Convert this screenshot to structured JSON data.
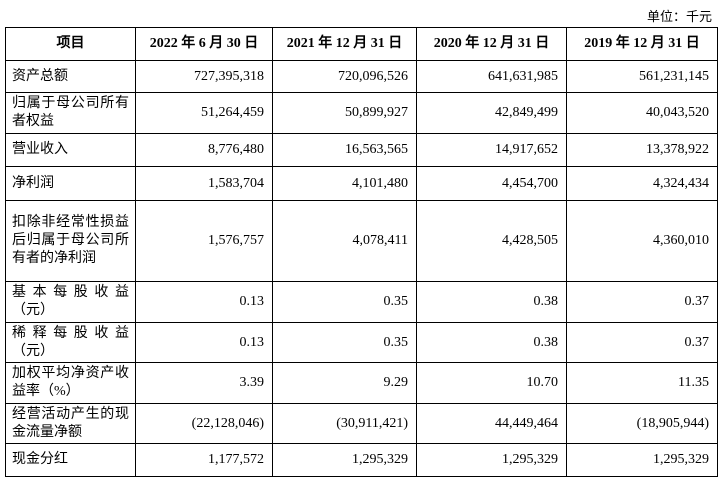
{
  "header": {
    "unit": "单位：千元"
  },
  "table": {
    "columns": [
      "项目",
      "2022 年 6 月 30 日",
      "2021 年 12 月 31 日",
      "2020 年 12 月 31 日",
      "2019 年 12 月 31 日"
    ],
    "rows": [
      [
        "资产总额",
        "727,395,318",
        "720,096,526",
        "641,631,985",
        "561,231,145"
      ],
      [
        "归属于母公司所有者权益",
        "51,264,459",
        "50,899,927",
        "42,849,499",
        "40,043,520"
      ],
      [
        "营业收入",
        "8,776,480",
        "16,563,565",
        "14,917,652",
        "13,378,922"
      ],
      [
        "净利润",
        "1,583,704",
        "4,101,480",
        "4,454,700",
        "4,324,434"
      ],
      [
        "扣除非经常性损益后归属于母公司所有者的净利润",
        "1,576,757",
        "4,078,411",
        "4,428,505",
        "4,360,010"
      ],
      [
        "基本每股收益（元）",
        "0.13",
        "0.35",
        "0.38",
        "0.37"
      ],
      [
        "稀释每股收益（元）",
        "0.13",
        "0.35",
        "0.38",
        "0.37"
      ],
      [
        "加权平均净资产收益率（%）",
        "3.39",
        "9.29",
        "10.70",
        "11.35"
      ],
      [
        "经营活动产生的现金流量净额",
        "(22,128,046)",
        "(30,911,421)",
        "44,449,464",
        "(18,905,944)"
      ],
      [
        "现金分红",
        "1,177,572",
        "1,295,329",
        "1,295,329",
        "1,295,329"
      ]
    ]
  }
}
